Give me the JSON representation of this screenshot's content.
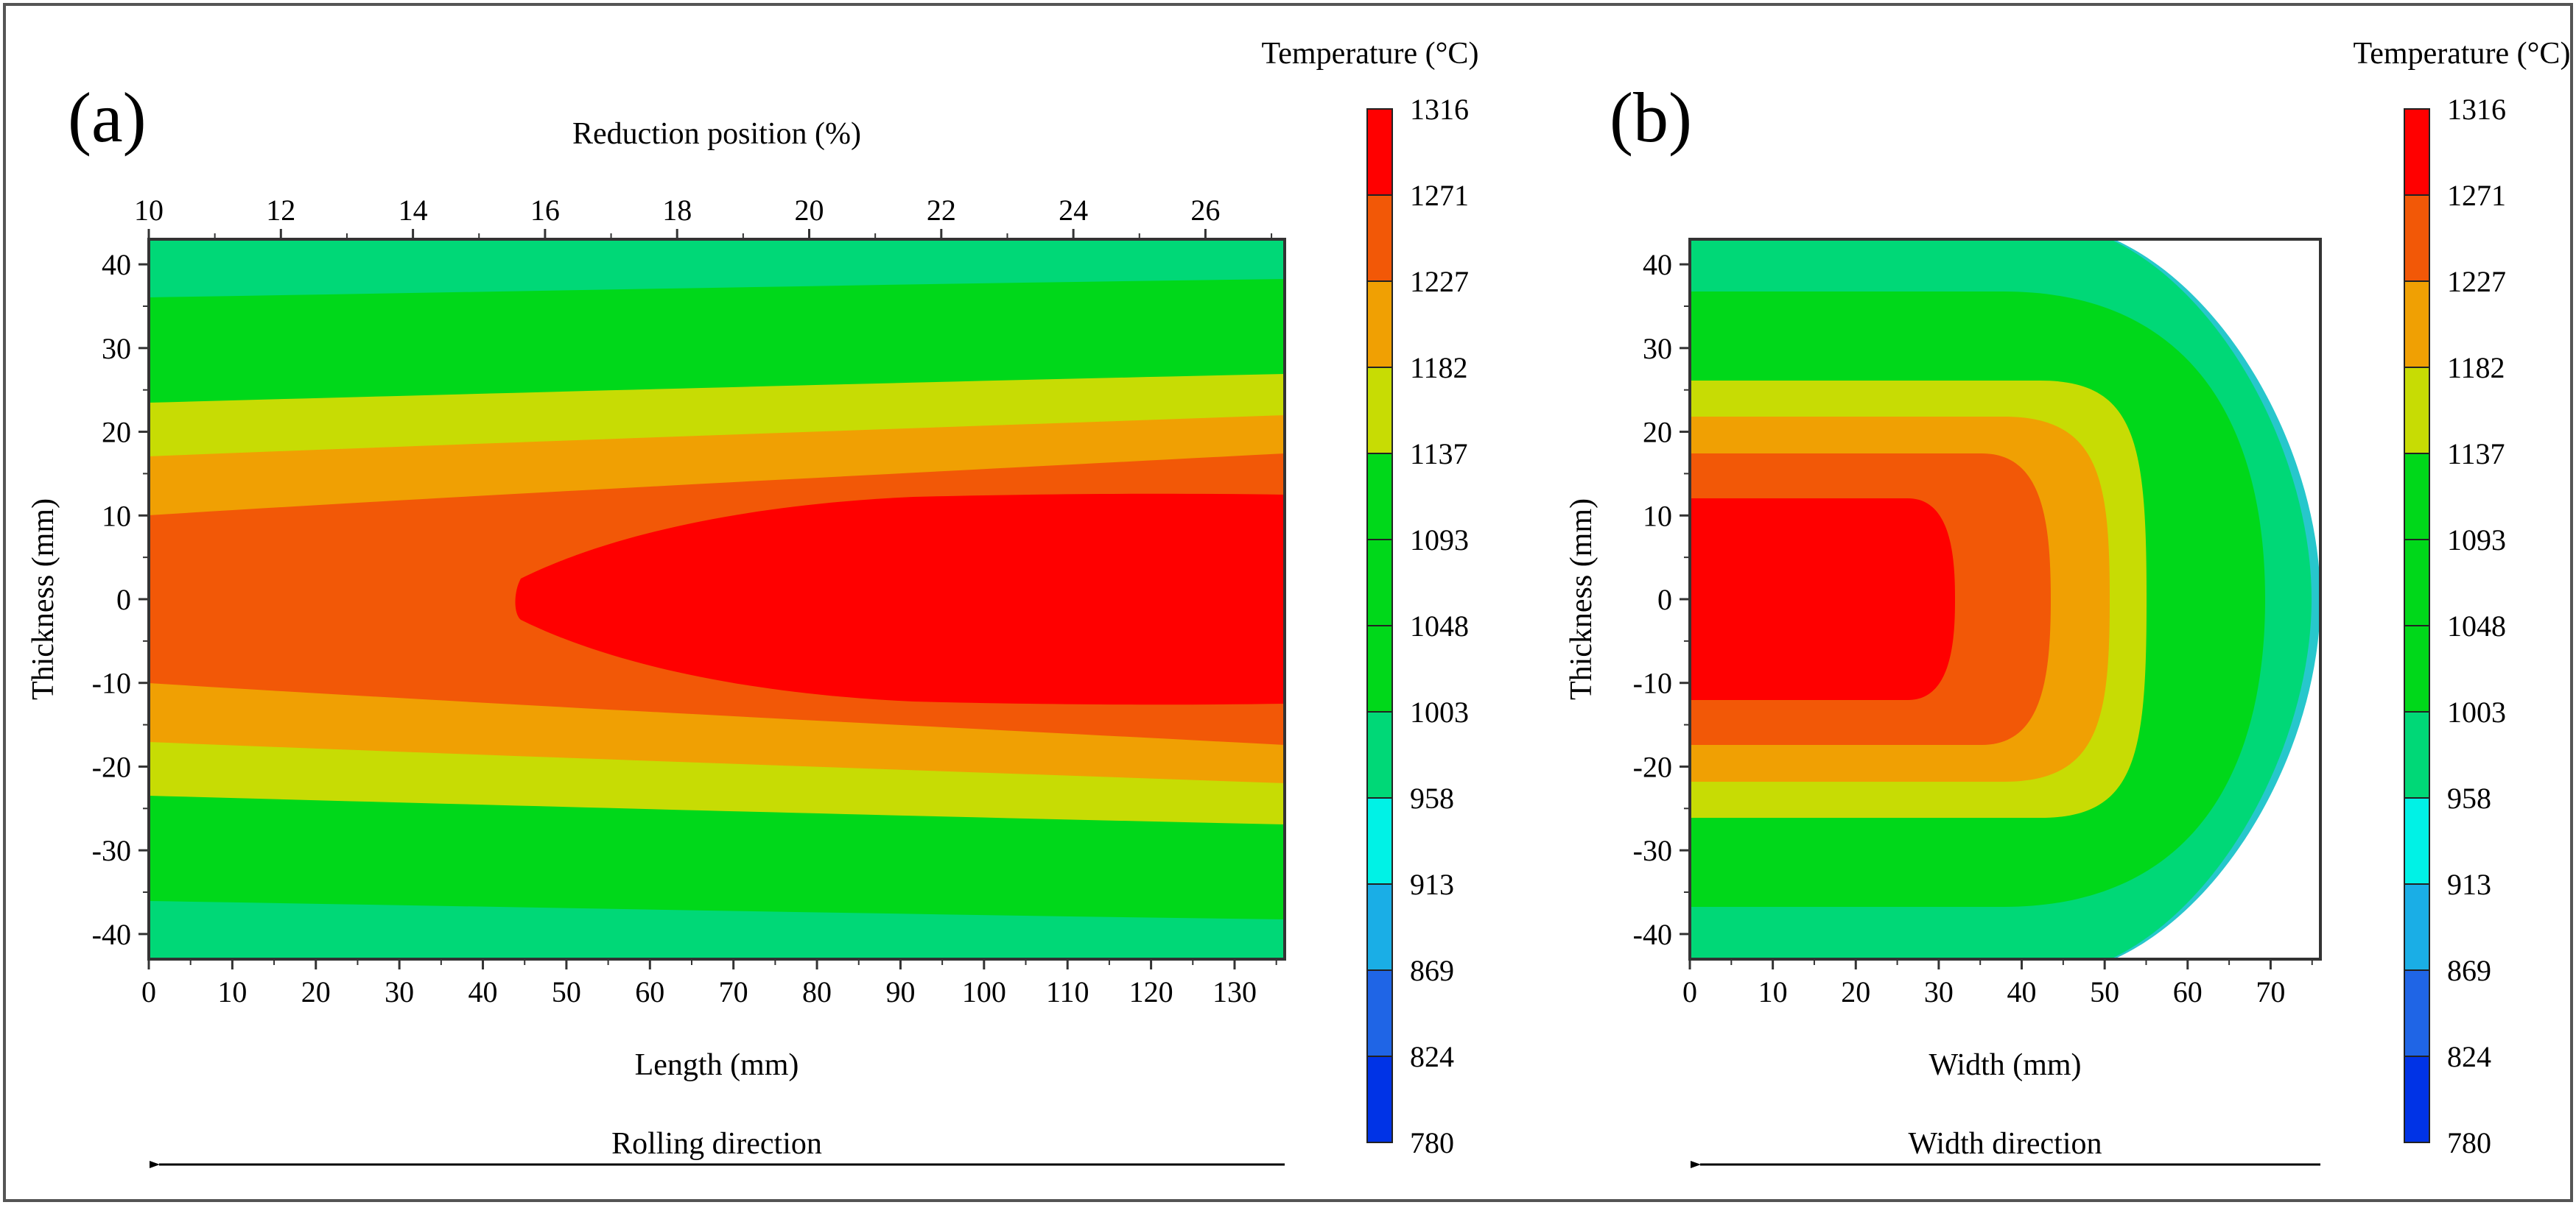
{
  "chart_data": [
    {
      "type": "heatmap",
      "panel_label": "(a)",
      "title": "",
      "xlabel": "Length (mm)",
      "ylabel": "Thickness (mm)",
      "secondary_xlabel": "Reduction position (%)",
      "direction_label": "Rolling direction",
      "xlim": [
        0,
        136
      ],
      "ylim": [
        -43,
        43
      ],
      "secondary_xlim": [
        10,
        27.2
      ],
      "x_ticks": [
        "0",
        "10",
        "20",
        "30",
        "40",
        "50",
        "60",
        "70",
        "80",
        "90",
        "100",
        "110",
        "120",
        "130"
      ],
      "y_ticks": [
        "40",
        "30",
        "20",
        "10",
        "0",
        "-10",
        "-20",
        "-30",
        "-40"
      ],
      "secondary_x_ticks": [
        "10",
        "12",
        "14",
        "16",
        "18",
        "20",
        "22",
        "24",
        "26"
      ],
      "contour_half_thickness_mm": [
        {
          "band": "1271-1316",
          "x": [
            44,
            60,
            80,
            100,
            120,
            136
          ],
          "half_thickness": [
            1,
            6,
            10,
            11.5,
            12,
            12
          ]
        },
        {
          "band": "1227-1271",
          "x": [
            0,
            40,
            80,
            120,
            136
          ],
          "half_thickness": [
            10,
            12.5,
            15.5,
            17,
            17.5
          ]
        },
        {
          "band": "1182-1227",
          "x": [
            0,
            40,
            80,
            120,
            136
          ],
          "half_thickness": [
            17,
            19,
            20.5,
            21.5,
            22
          ]
        },
        {
          "band": "1137-1182",
          "x": [
            0,
            40,
            80,
            120,
            136
          ],
          "half_thickness": [
            23.5,
            24.5,
            25.5,
            26.5,
            27
          ]
        },
        {
          "band": "1003-1137",
          "x": [
            0,
            60,
            136
          ],
          "half_thickness": [
            35.5,
            36.5,
            37.5
          ]
        },
        {
          "band": "958-1003",
          "x": [
            0,
            136
          ],
          "half_thickness": [
            43,
            43
          ]
        }
      ]
    },
    {
      "type": "heatmap",
      "panel_label": "(b)",
      "title": "",
      "xlabel": "Width (mm)",
      "ylabel": "Thickness (mm)",
      "direction_label": "Width direction",
      "xlim": [
        0,
        76
      ],
      "ylim": [
        -43,
        43
      ],
      "x_ticks": [
        "0",
        "10",
        "20",
        "30",
        "40",
        "50",
        "60",
        "70"
      ],
      "y_ticks": [
        "40",
        "30",
        "20",
        "10",
        "0",
        "-10",
        "-20",
        "-30",
        "-40"
      ],
      "contour_extents_mm": [
        {
          "band": "1271-1316",
          "width": 31,
          "half_thickness": 12.5
        },
        {
          "band": "1227-1271",
          "width": 42,
          "half_thickness": 18
        },
        {
          "band": "1182-1227",
          "width": 49,
          "half_thickness": 22.5
        },
        {
          "band": "1137-1182",
          "width": 55,
          "half_thickness": 27
        },
        {
          "band": "1003-1137",
          "width": 71.5,
          "half_thickness": 37.5
        },
        {
          "band": "958-1003",
          "width": 75,
          "half_thickness": 43
        },
        {
          "band": "913-958",
          "width": 76,
          "half_thickness": 43
        }
      ]
    }
  ],
  "colorbar": {
    "title": "Temperature (°C)",
    "levels": [
      "1316",
      "1271",
      "1227",
      "1182",
      "1137",
      "1093",
      "1048",
      "1003",
      "958",
      "913",
      "869",
      "824",
      "780"
    ],
    "band_colors_top_to_bottom": [
      "#ff0000",
      "#f25807",
      "#f0a003",
      "#c7dc04",
      "#00d81a",
      "#00d81a",
      "#00d81a",
      "#00d877",
      "#00f2e6",
      "#1aaee6",
      "#1f65e6",
      "#0033e6"
    ]
  },
  "colors": {
    "frame": "#333333",
    "band_1271_1316": "#ff0000",
    "band_1227_1271": "#f25807",
    "band_1182_1227": "#f0a003",
    "band_1137_1182": "#c7dc04",
    "band_1003_1137": "#00d81a",
    "band_958_1003": "#00d877",
    "band_913_958": "#27c7cc"
  }
}
